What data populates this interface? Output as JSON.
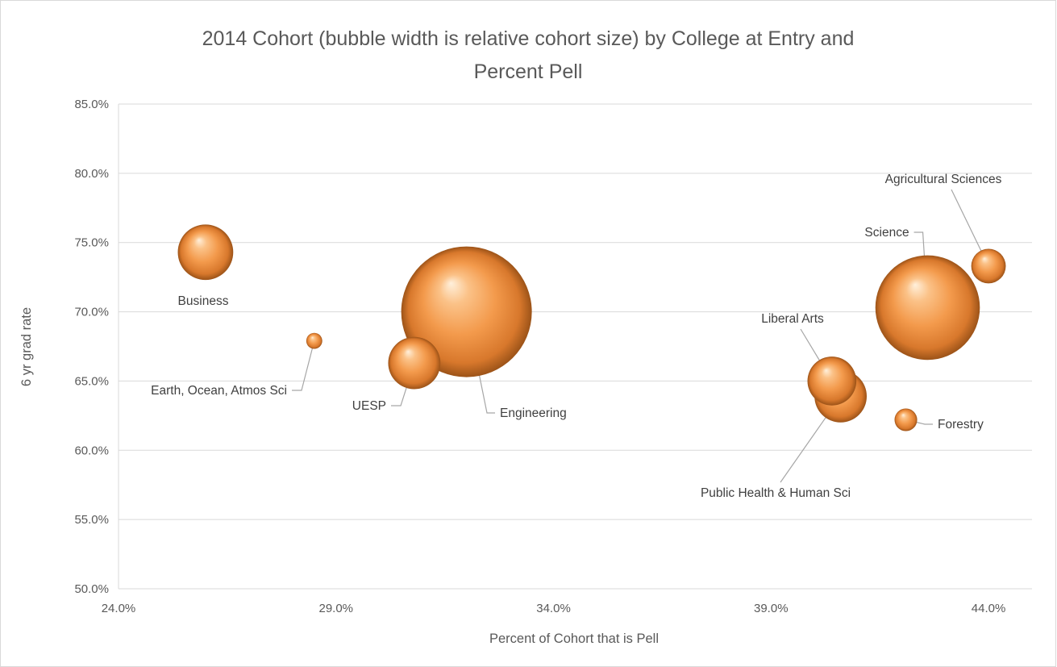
{
  "chart_data": {
    "type": "bubble",
    "title": "2014 Cohort (bubble width is relative cohort size) by College at Entry and Percent Pell",
    "title_lines": [
      "2014 Cohort (bubble width is relative cohort size) by College at Entry and",
      "Percent Pell"
    ],
    "xlabel": "Percent of Cohort that is Pell",
    "ylabel": "6 yr grad rate",
    "xlim": [
      24.0,
      45.0
    ],
    "ylim": [
      50.0,
      85.0
    ],
    "x_ticks": [
      "24.0%",
      "29.0%",
      "34.0%",
      "39.0%",
      "44.0%"
    ],
    "x_tick_values": [
      24,
      29,
      34,
      39,
      44
    ],
    "y_ticks": [
      "50.0%",
      "55.0%",
      "60.0%",
      "65.0%",
      "70.0%",
      "75.0%",
      "80.0%",
      "85.0%"
    ],
    "y_tick_values": [
      50,
      55,
      60,
      65,
      70,
      75,
      80,
      85
    ],
    "grid": true,
    "legend": "none",
    "bubble_color": "#f2a25a",
    "points": [
      {
        "name": "Business",
        "x": 26.0,
        "y": 74.3,
        "size": 0.18
      },
      {
        "name": "Earth, Ocean, Atmos Sci",
        "x": 28.5,
        "y": 67.9,
        "size": 0.015
      },
      {
        "name": "UESP",
        "x": 30.8,
        "y": 66.3,
        "size": 0.16
      },
      {
        "name": "Engineering",
        "x": 32.0,
        "y": 70.0,
        "size": 1.0
      },
      {
        "name": "Liberal Arts",
        "x": 40.4,
        "y": 65.0,
        "size": 0.14
      },
      {
        "name": "Public Health & Human Sci",
        "x": 40.6,
        "y": 63.9,
        "size": 0.16
      },
      {
        "name": "Forestry",
        "x": 42.1,
        "y": 62.2,
        "size": 0.03
      },
      {
        "name": "Science",
        "x": 42.6,
        "y": 70.3,
        "size": 0.64
      },
      {
        "name": "Agricultural Sciences",
        "x": 44.0,
        "y": 73.3,
        "size": 0.07
      }
    ]
  }
}
